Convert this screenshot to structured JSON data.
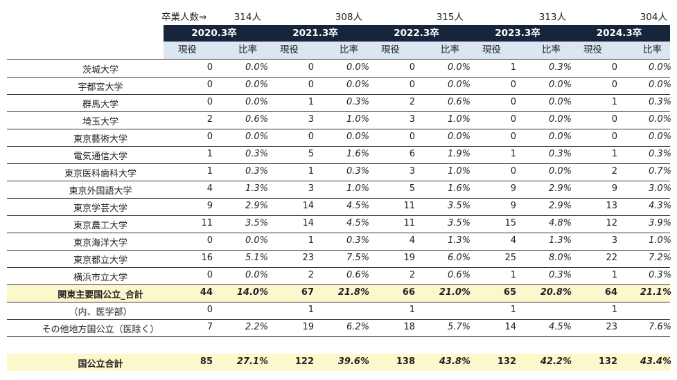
{
  "grad_label": "卒業人数⇒",
  "years": [
    {
      "label": "2020.3卒",
      "grads": "314人"
    },
    {
      "label": "2021.3卒",
      "grads": "308人"
    },
    {
      "label": "2022.3卒",
      "grads": "315人"
    },
    {
      "label": "2023.3卒",
      "grads": "313人"
    },
    {
      "label": "2024.3卒",
      "grads": "304人"
    }
  ],
  "sub_headers": {
    "count": "現役",
    "ratio": "比率"
  },
  "rows": [
    {
      "name": "茨城大学",
      "vals": [
        [
          "0",
          "0.0%"
        ],
        [
          "0",
          "0.0%"
        ],
        [
          "0",
          "0.0%"
        ],
        [
          "1",
          "0.3%"
        ],
        [
          "0",
          "0.0%"
        ]
      ]
    },
    {
      "name": "宇都宮大学",
      "vals": [
        [
          "0",
          "0.0%"
        ],
        [
          "0",
          "0.0%"
        ],
        [
          "0",
          "0.0%"
        ],
        [
          "0",
          "0.0%"
        ],
        [
          "0",
          "0.0%"
        ]
      ]
    },
    {
      "name": "群馬大学",
      "vals": [
        [
          "0",
          "0.0%"
        ],
        [
          "1",
          "0.3%"
        ],
        [
          "2",
          "0.6%"
        ],
        [
          "0",
          "0.0%"
        ],
        [
          "1",
          "0.3%"
        ]
      ]
    },
    {
      "name": "埼玉大学",
      "vals": [
        [
          "2",
          "0.6%"
        ],
        [
          "3",
          "1.0%"
        ],
        [
          "3",
          "1.0%"
        ],
        [
          "0",
          "0.0%"
        ],
        [
          "0",
          "0.0%"
        ]
      ]
    },
    {
      "name": "東京藝術大学",
      "vals": [
        [
          "0",
          "0.0%"
        ],
        [
          "0",
          "0.0%"
        ],
        [
          "0",
          "0.0%"
        ],
        [
          "0",
          "0.0%"
        ],
        [
          "0",
          "0.0%"
        ]
      ]
    },
    {
      "name": "電気通信大学",
      "vals": [
        [
          "1",
          "0.3%"
        ],
        [
          "5",
          "1.6%"
        ],
        [
          "6",
          "1.9%"
        ],
        [
          "1",
          "0.3%"
        ],
        [
          "1",
          "0.3%"
        ]
      ]
    },
    {
      "name": "東京医科歯科大学",
      "vals": [
        [
          "1",
          "0.3%"
        ],
        [
          "1",
          "0.3%"
        ],
        [
          "3",
          "1.0%"
        ],
        [
          "0",
          "0.0%"
        ],
        [
          "2",
          "0.7%"
        ]
      ]
    },
    {
      "name": "東京外国語大学",
      "vals": [
        [
          "4",
          "1.3%"
        ],
        [
          "3",
          "1.0%"
        ],
        [
          "5",
          "1.6%"
        ],
        [
          "9",
          "2.9%"
        ],
        [
          "9",
          "3.0%"
        ]
      ]
    },
    {
      "name": "東京学芸大学",
      "vals": [
        [
          "9",
          "2.9%"
        ],
        [
          "14",
          "4.5%"
        ],
        [
          "11",
          "3.5%"
        ],
        [
          "9",
          "2.9%"
        ],
        [
          "13",
          "4.3%"
        ]
      ]
    },
    {
      "name": "東京農工大学",
      "vals": [
        [
          "11",
          "3.5%"
        ],
        [
          "14",
          "4.5%"
        ],
        [
          "11",
          "3.5%"
        ],
        [
          "15",
          "4.8%"
        ],
        [
          "12",
          "3.9%"
        ]
      ]
    },
    {
      "name": "東京海洋大学",
      "vals": [
        [
          "0",
          "0.0%"
        ],
        [
          "1",
          "0.3%"
        ],
        [
          "4",
          "1.3%"
        ],
        [
          "4",
          "1.3%"
        ],
        [
          "3",
          "1.0%"
        ]
      ]
    },
    {
      "name": "東京都立大学",
      "vals": [
        [
          "16",
          "5.1%"
        ],
        [
          "23",
          "7.5%"
        ],
        [
          "19",
          "6.0%"
        ],
        [
          "25",
          "8.0%"
        ],
        [
          "22",
          "7.2%"
        ]
      ]
    },
    {
      "name": "横浜市立大学",
      "vals": [
        [
          "0",
          "0.0%"
        ],
        [
          "2",
          "0.6%"
        ],
        [
          "2",
          "0.6%"
        ],
        [
          "1",
          "0.3%"
        ],
        [
          "1",
          "0.3%"
        ]
      ]
    }
  ],
  "total_row": {
    "name": "関東主要国公立_合計",
    "vals": [
      [
        "44",
        "14.0%"
      ],
      [
        "67",
        "21.8%"
      ],
      [
        "66",
        "21.0%"
      ],
      [
        "65",
        "20.8%"
      ],
      [
        "64",
        "21.1%"
      ]
    ]
  },
  "medical_row": {
    "name": "（内、医学部）",
    "vals": [
      [
        "0",
        ""
      ],
      [
        "1",
        ""
      ],
      [
        "1",
        ""
      ],
      [
        "1",
        ""
      ],
      [
        "1",
        ""
      ]
    ]
  },
  "other_row": {
    "name": "その他地方国公立（医除く）",
    "vals": [
      [
        "7",
        "2.2%"
      ],
      [
        "19",
        "6.2%"
      ],
      [
        "18",
        "5.7%"
      ],
      [
        "14",
        "4.5%"
      ],
      [
        "23",
        "7.6%"
      ]
    ]
  },
  "grand_row": {
    "name": "国公立合計",
    "vals": [
      [
        "85",
        "27.1%"
      ],
      [
        "122",
        "39.6%"
      ],
      [
        "138",
        "43.8%"
      ],
      [
        "132",
        "42.2%"
      ],
      [
        "132",
        "43.4%"
      ]
    ]
  },
  "colors": {
    "header_bg": "#17253c",
    "subheader_bg": "#dce6f2",
    "highlight_bg": "#fdf7cc"
  }
}
